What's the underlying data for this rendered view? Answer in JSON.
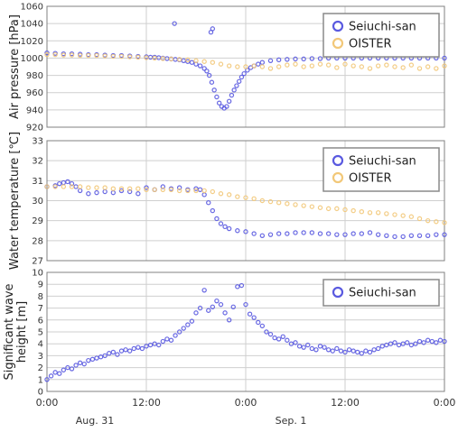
{
  "colors": {
    "seiuchi": "#5a5ae0",
    "oister": "#f2c879"
  },
  "x_axis": {
    "ticks": [
      "0:00",
      "12:00",
      "0:00",
      "12:00",
      "0:00"
    ],
    "dates": [
      "Aug. 31",
      "Sep. 1"
    ]
  },
  "chart_data": [
    {
      "type": "scatter",
      "ylabel": "Air pressure [hPa]",
      "ylim": [
        920,
        1060
      ],
      "yticks": [
        920,
        940,
        960,
        980,
        1000,
        1020,
        1040,
        1060
      ],
      "xlim": [
        0,
        48
      ],
      "legend": {
        "position": "top-right",
        "entries": [
          "Seiuchi-san",
          "OISTER"
        ]
      },
      "series": [
        {
          "name": "Seiuchi-san",
          "color": "#5a5ae0",
          "x": [
            0,
            1,
            2,
            3,
            4,
            5,
            6,
            7,
            8,
            9,
            10,
            11,
            12,
            12.5,
            13,
            13.5,
            14,
            14.5,
            15,
            15.5,
            16,
            16.5,
            17,
            17.5,
            18,
            18.5,
            19,
            19.3,
            19.6,
            19.9,
            20.2,
            20.5,
            20.8,
            21.1,
            21.4,
            21.7,
            22,
            22.3,
            22.6,
            22.9,
            23.2,
            23.5,
            23.8,
            24.2,
            24.6,
            25,
            25.5,
            26,
            27,
            28,
            29,
            30,
            31,
            32,
            33,
            34,
            35,
            36,
            37,
            38,
            39,
            40,
            41,
            42,
            43,
            44,
            45,
            46,
            47,
            48,
            15.4,
            19.8,
            20.0
          ],
          "y": [
            1006,
            1005.5,
            1005,
            1005,
            1004.5,
            1004,
            1004,
            1003.5,
            1003,
            1003,
            1002.5,
            1002,
            1001.5,
            1001,
            1001,
            1000.5,
            1000,
            999.5,
            999,
            998.5,
            998,
            997,
            996,
            995,
            993,
            991,
            988,
            985,
            980,
            972,
            963,
            955,
            948,
            944,
            942,
            944,
            950,
            957,
            963,
            968,
            973,
            978,
            982,
            986,
            989,
            991,
            993,
            995,
            997,
            998,
            998.5,
            999,
            999,
            999.5,
            999.5,
            1000,
            1000,
            1000,
            1000,
            1000,
            1000,
            1000,
            1000,
            1000,
            1000,
            1000,
            1000,
            1000,
            1000,
            1000,
            1040,
            1030,
            1034
          ]
        },
        {
          "name": "OISTER",
          "color": "#f2c879",
          "x": [
            0,
            1,
            2,
            3,
            4,
            5,
            6,
            7,
            8,
            9,
            10,
            11,
            12,
            13,
            14,
            15,
            16,
            17,
            18,
            19,
            20,
            21,
            22,
            23,
            24,
            25,
            26,
            27,
            28,
            29,
            30,
            31,
            32,
            33,
            34,
            35,
            36,
            37,
            38,
            39,
            40,
            41,
            42,
            43,
            44,
            45,
            46,
            47,
            48
          ],
          "y": [
            1004,
            1004,
            1003.5,
            1003.5,
            1003,
            1003,
            1003,
            1002.5,
            1002,
            1002,
            1001.5,
            1001,
            1000.5,
            1000,
            999.5,
            999,
            998.5,
            998,
            997,
            996,
            995,
            993,
            991,
            990,
            990,
            991,
            990,
            988,
            990,
            992,
            993,
            990,
            991,
            993,
            992,
            989,
            993,
            991,
            990,
            988,
            991,
            992,
            990,
            989,
            992,
            988,
            990,
            988,
            991
          ]
        }
      ]
    },
    {
      "type": "scatter",
      "ylabel": "Water temperature [℃]",
      "ylim": [
        27,
        33
      ],
      "yticks": [
        27,
        28,
        29,
        30,
        31,
        32,
        33
      ],
      "xlim": [
        0,
        48
      ],
      "legend": {
        "position": "top-right",
        "entries": [
          "Seiuchi-san",
          "OISTER"
        ]
      },
      "series": [
        {
          "name": "Seiuchi-san",
          "color": "#5a5ae0",
          "x": [
            0,
            1,
            1.5,
            2,
            2.5,
            3,
            3.5,
            4,
            5,
            6,
            7,
            8,
            9,
            10,
            11,
            12,
            13,
            14,
            15,
            16,
            17,
            18,
            18.5,
            19,
            19.5,
            20,
            20.5,
            21,
            21.5,
            22,
            23,
            24,
            25,
            26,
            27,
            28,
            29,
            30,
            31,
            32,
            33,
            34,
            35,
            36,
            37,
            38,
            39,
            40,
            41,
            42,
            43,
            44,
            45,
            46,
            47,
            48
          ],
          "y": [
            30.7,
            30.75,
            30.85,
            30.9,
            30.95,
            30.85,
            30.7,
            30.5,
            30.35,
            30.4,
            30.45,
            30.4,
            30.5,
            30.45,
            30.35,
            30.65,
            30.55,
            30.7,
            30.6,
            30.65,
            30.55,
            30.6,
            30.55,
            30.3,
            29.9,
            29.5,
            29.1,
            28.85,
            28.7,
            28.6,
            28.5,
            28.45,
            28.35,
            28.25,
            28.3,
            28.35,
            28.35,
            28.4,
            28.4,
            28.4,
            28.35,
            28.35,
            28.3,
            28.3,
            28.35,
            28.35,
            28.4,
            28.3,
            28.25,
            28.2,
            28.2,
            28.25,
            28.25,
            28.25,
            28.3,
            28.3
          ]
        },
        {
          "name": "OISTER",
          "color": "#f2c879",
          "x": [
            0,
            1,
            2,
            3,
            4,
            5,
            6,
            7,
            8,
            9,
            10,
            11,
            12,
            13,
            14,
            15,
            16,
            17,
            18,
            19,
            20,
            21,
            22,
            23,
            24,
            25,
            26,
            27,
            28,
            29,
            30,
            31,
            32,
            33,
            34,
            35,
            36,
            37,
            38,
            39,
            40,
            41,
            42,
            43,
            44,
            45,
            46,
            47,
            48
          ],
          "y": [
            30.7,
            30.7,
            30.7,
            30.7,
            30.7,
            30.65,
            30.65,
            30.65,
            30.6,
            30.6,
            30.6,
            30.6,
            30.55,
            30.55,
            30.55,
            30.55,
            30.5,
            30.5,
            30.5,
            30.5,
            30.45,
            30.35,
            30.3,
            30.2,
            30.15,
            30.1,
            30,
            29.95,
            29.9,
            29.85,
            29.8,
            29.75,
            29.7,
            29.65,
            29.6,
            29.6,
            29.55,
            29.5,
            29.45,
            29.4,
            29.4,
            29.35,
            29.3,
            29.25,
            29.2,
            29.1,
            29.0,
            28.95,
            28.9
          ]
        }
      ]
    },
    {
      "type": "scatter",
      "ylabel": "Significant wave height [m]",
      "ylim": [
        0,
        10
      ],
      "yticks": [
        0,
        1,
        2,
        3,
        4,
        5,
        6,
        7,
        8,
        9,
        10
      ],
      "xlim": [
        0,
        48
      ],
      "legend": {
        "position": "top-right",
        "entries": [
          "Seiuchi-san"
        ]
      },
      "series": [
        {
          "name": "Seiuchi-san",
          "color": "#5a5ae0",
          "x": [
            0,
            0.5,
            1,
            1.5,
            2,
            2.5,
            3,
            3.5,
            4,
            4.5,
            5,
            5.5,
            6,
            6.5,
            7,
            7.5,
            8,
            8.5,
            9,
            9.5,
            10,
            10.5,
            11,
            11.5,
            12,
            12.5,
            13,
            13.5,
            14,
            14.5,
            15,
            15.5,
            16,
            16.5,
            17,
            17.5,
            18,
            18.5,
            19,
            19.5,
            20,
            20.5,
            21,
            21.5,
            22,
            22.5,
            23,
            23.5,
            24,
            24.5,
            25,
            25.5,
            26,
            26.5,
            27,
            27.5,
            28,
            28.5,
            29,
            29.5,
            30,
            30.5,
            31,
            31.5,
            32,
            32.5,
            33,
            33.5,
            34,
            34.5,
            35,
            35.5,
            36,
            36.5,
            37,
            37.5,
            38,
            38.5,
            39,
            39.5,
            40,
            40.5,
            41,
            41.5,
            42,
            42.5,
            43,
            43.5,
            44,
            44.5,
            45,
            45.5,
            46,
            46.5,
            47,
            47.5,
            48
          ],
          "y": [
            1.0,
            1.3,
            1.6,
            1.5,
            1.8,
            2.0,
            1.9,
            2.2,
            2.4,
            2.3,
            2.6,
            2.7,
            2.8,
            2.9,
            3.0,
            3.2,
            3.3,
            3.1,
            3.4,
            3.5,
            3.4,
            3.6,
            3.7,
            3.6,
            3.8,
            3.9,
            4.0,
            3.9,
            4.2,
            4.4,
            4.3,
            4.7,
            5.0,
            5.3,
            5.6,
            5.9,
            6.6,
            7.0,
            8.5,
            6.8,
            7.1,
            7.6,
            7.3,
            6.6,
            6.0,
            7.1,
            8.8,
            8.9,
            7.3,
            6.5,
            6.2,
            5.8,
            5.5,
            5.0,
            4.8,
            4.5,
            4.4,
            4.6,
            4.3,
            4.0,
            4.1,
            3.8,
            3.7,
            3.9,
            3.6,
            3.5,
            3.8,
            3.7,
            3.5,
            3.4,
            3.6,
            3.4,
            3.3,
            3.5,
            3.4,
            3.3,
            3.2,
            3.4,
            3.3,
            3.5,
            3.6,
            3.8,
            3.9,
            4.0,
            4.1,
            3.9,
            4.0,
            4.1,
            3.9,
            4.0,
            4.2,
            4.1,
            4.3,
            4.2,
            4.1,
            4.3,
            4.2
          ]
        }
      ]
    }
  ]
}
